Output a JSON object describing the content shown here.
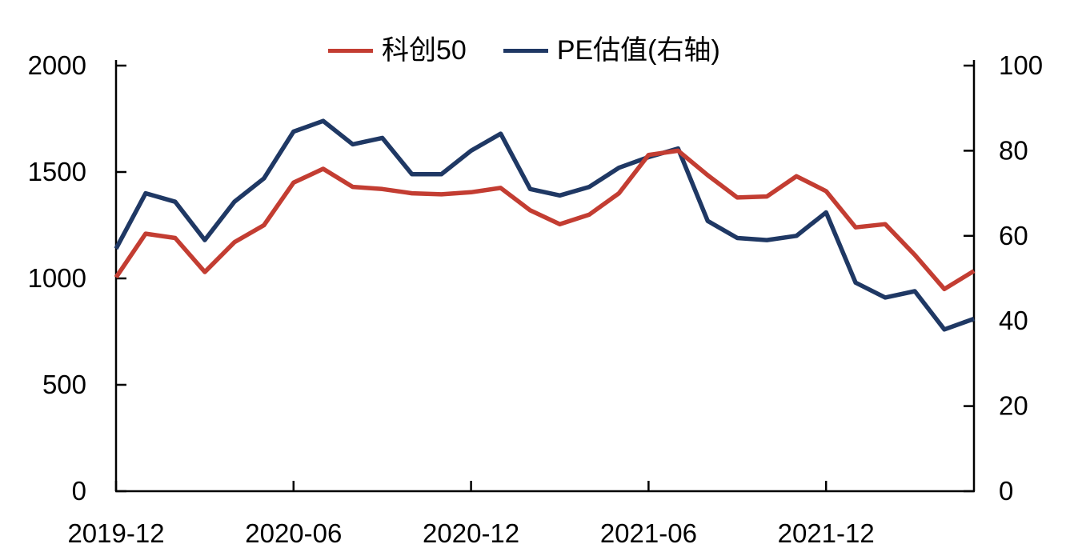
{
  "chart_data": {
    "type": "line",
    "title": "",
    "grid": false,
    "legend_position": "top-center",
    "x": [
      "2019-12",
      "2020-01",
      "2020-02",
      "2020-03",
      "2020-04",
      "2020-05",
      "2020-06",
      "2020-07",
      "2020-08",
      "2020-09",
      "2020-10",
      "2020-11",
      "2020-12",
      "2021-01",
      "2021-02",
      "2021-03",
      "2021-04",
      "2021-05",
      "2021-06",
      "2021-07",
      "2021-08",
      "2021-09",
      "2021-10",
      "2021-11",
      "2021-12",
      "2022-01",
      "2022-02",
      "2022-03",
      "2022-04",
      "2022-05"
    ],
    "series": [
      {
        "name": "科创50",
        "axis": "left",
        "color": "#c33d32",
        "values": [
          1005,
          1210,
          1190,
          1030,
          1170,
          1250,
          1450,
          1515,
          1430,
          1420,
          1400,
          1395,
          1405,
          1425,
          1320,
          1255,
          1300,
          1400,
          1580,
          1600,
          1485,
          1380,
          1385,
          1480,
          1410,
          1240,
          1255,
          1110,
          950,
          1035
        ]
      },
      {
        "name": "PE估值(右轴)",
        "axis": "right",
        "color": "#1f3864",
        "values": [
          57,
          70,
          68,
          59,
          68,
          73.5,
          84.5,
          87,
          81.5,
          83,
          74.5,
          74.5,
          80,
          84,
          71,
          69.5,
          71.5,
          76,
          78.5,
          80.5,
          63.5,
          59.5,
          59,
          60,
          65.5,
          49,
          45.5,
          47,
          38,
          40.5
        ]
      }
    ],
    "left_axis": {
      "min": 0,
      "max": 2000,
      "ticks": [
        0,
        500,
        1000,
        1500,
        2000
      ]
    },
    "right_axis": {
      "min": 0,
      "max": 100,
      "ticks": [
        0,
        20,
        40,
        60,
        80,
        100
      ]
    },
    "x_axis": {
      "tick_labels": [
        "2019-12",
        "2020-06",
        "2020-12",
        "2021-06",
        "2021-12"
      ],
      "tick_interval_months": 6
    }
  }
}
